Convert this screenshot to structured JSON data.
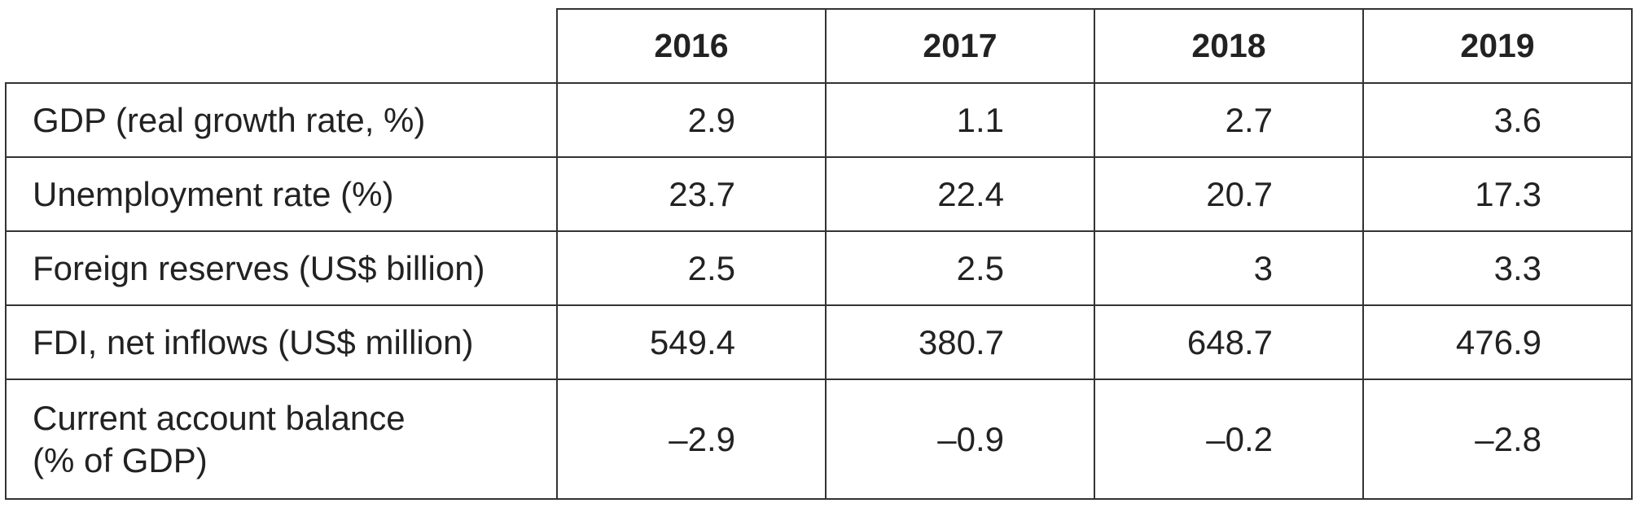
{
  "table": {
    "columns": [
      "2016",
      "2017",
      "2018",
      "2019"
    ],
    "rows": [
      {
        "label": "GDP (real growth rate, %)",
        "values": [
          "2.9",
          "1.1",
          "2.7",
          "3.6"
        ]
      },
      {
        "label": "Unemployment rate (%)",
        "values": [
          "23.7",
          "22.4",
          "20.7",
          "17.3"
        ]
      },
      {
        "label": "Foreign reserves (US$ billion)",
        "values": [
          "2.5",
          "2.5",
          "3",
          "3.3"
        ]
      },
      {
        "label": "FDI, net inflows (US$ million)",
        "values": [
          "549.4",
          "380.7",
          "648.7",
          "476.9"
        ]
      },
      {
        "label_line1": "Current account balance",
        "label_line2": "(% of GDP)",
        "values": [
          "–2.9",
          "–0.9",
          "–0.2",
          "–2.8"
        ]
      }
    ]
  }
}
